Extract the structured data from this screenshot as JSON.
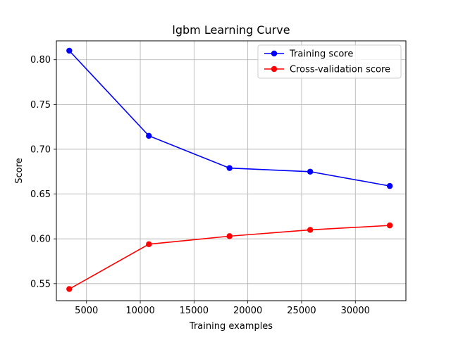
{
  "chart_data": {
    "type": "line",
    "title": "lgbm Learning Curve",
    "xlabel": "Training examples",
    "ylabel": "Score",
    "x": [
      3400,
      10800,
      18300,
      25800,
      33200
    ],
    "series": [
      {
        "name": "Training score",
        "color": "#0000ff",
        "values": [
          0.81,
          0.715,
          0.679,
          0.675,
          0.659
        ]
      },
      {
        "name": "Cross-validation score",
        "color": "#ff0000",
        "values": [
          0.544,
          0.594,
          0.603,
          0.61,
          0.615
        ]
      }
    ],
    "xlim": [
      2200,
      34700
    ],
    "ylim": [
      0.531,
      0.821
    ],
    "xticks": [
      5000,
      10000,
      15000,
      20000,
      25000,
      30000
    ],
    "xtick_labels": [
      "5000",
      "10000",
      "15000",
      "20000",
      "25000",
      "30000"
    ],
    "yticks": [
      0.55,
      0.6,
      0.65,
      0.7,
      0.75,
      0.8
    ],
    "ytick_labels": [
      "0.55",
      "0.60",
      "0.65",
      "0.70",
      "0.75",
      "0.80"
    ],
    "grid": true,
    "legend_position": "top-right"
  }
}
